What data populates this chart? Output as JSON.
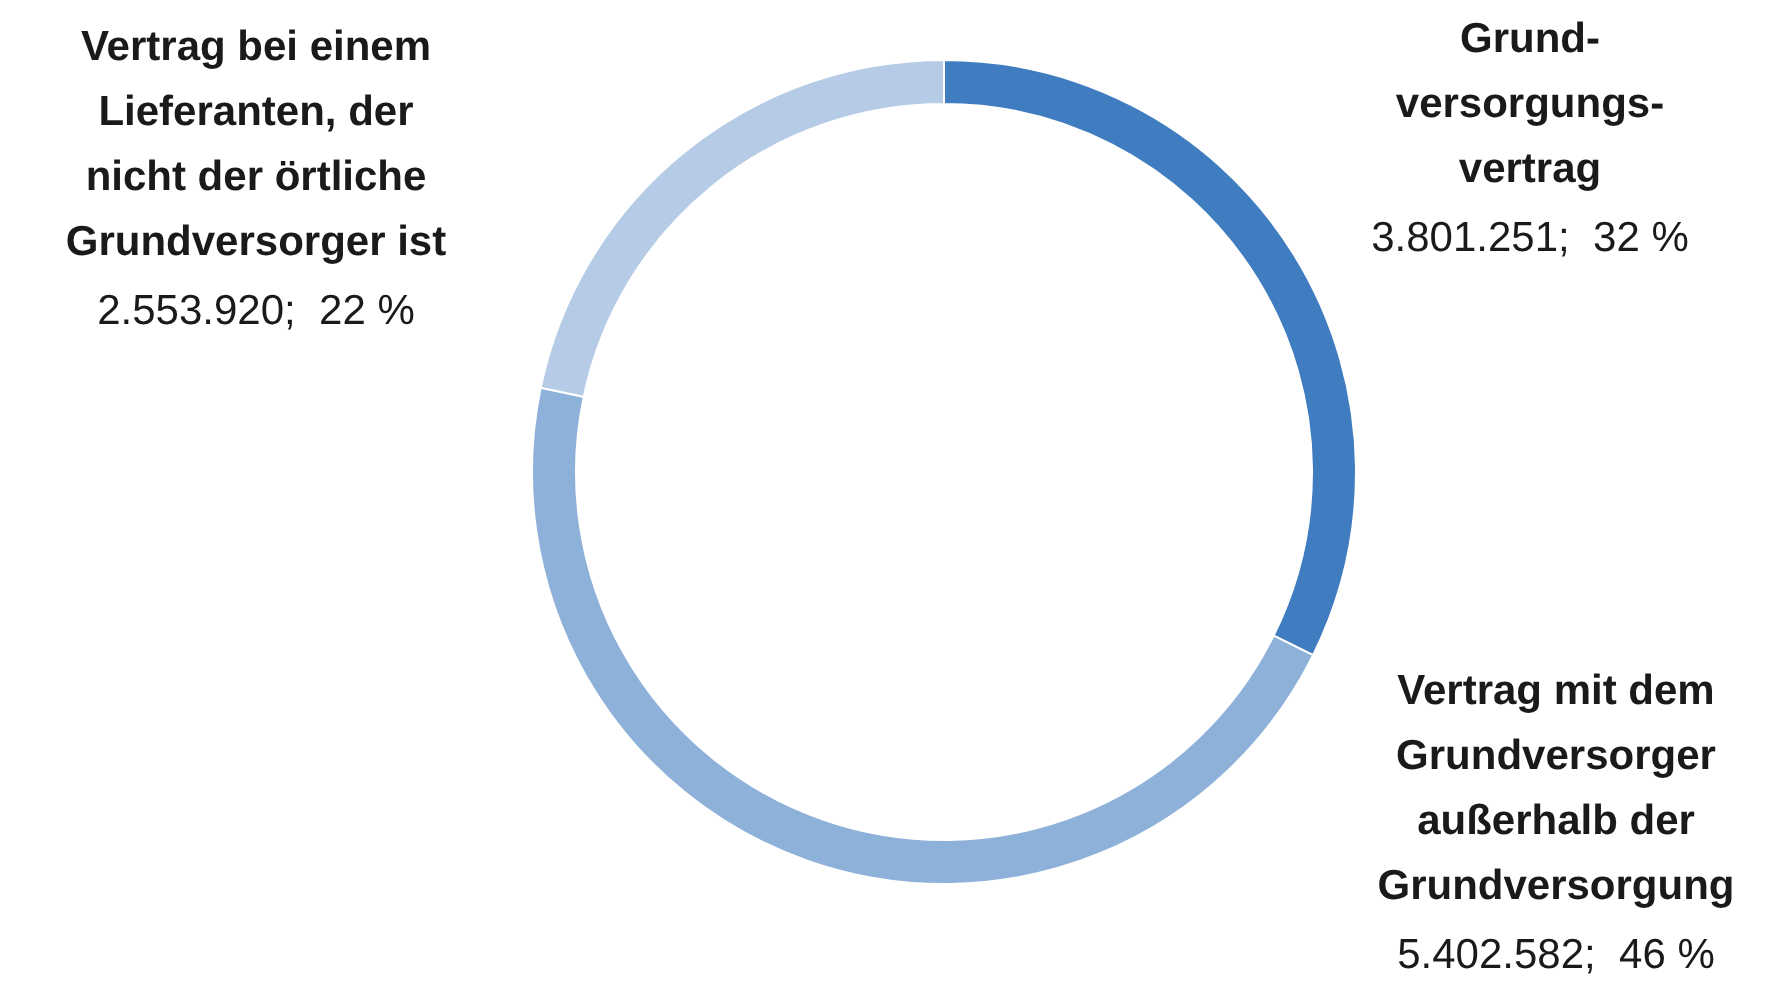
{
  "chart_data": {
    "type": "donut",
    "categories": [
      "Grund-\nversorgungs-\nvertrag",
      "Vertrag mit dem\nGrundversorger\naußerhalb der\nGrundversorgung",
      "Vertrag bei einem\nLieferanten, der\nnicht der örtliche\nGrundversorger ist"
    ],
    "values": [
      3801251,
      5402582,
      2553920
    ],
    "value_labels": [
      "3.801.251;  32 %",
      "5.402.582;  46 %",
      "2.553.920;  22 %"
    ],
    "colors": [
      "#3f7cc0",
      "#8eb1da",
      "#b5cbe6"
    ]
  }
}
